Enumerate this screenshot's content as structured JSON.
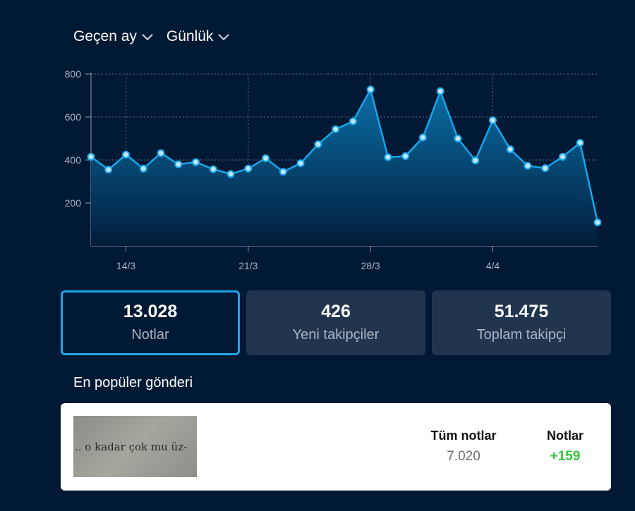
{
  "filters": {
    "period_label": "Geçen ay",
    "granularity_label": "Günlük"
  },
  "chart_data": {
    "type": "area",
    "y_ticks": [
      200,
      400,
      600,
      800
    ],
    "x_ticks": [
      "14/3",
      "21/3",
      "28/3",
      "4/4"
    ],
    "ylim": [
      0,
      800
    ],
    "grid": true,
    "values": [
      415,
      355,
      425,
      360,
      432,
      380,
      390,
      357,
      335,
      360,
      408,
      345,
      385,
      473,
      543,
      580,
      728,
      413,
      418,
      505,
      720,
      500,
      398,
      585,
      450,
      373,
      362,
      415,
      480,
      110
    ],
    "colors": {
      "line": "#15a7ec",
      "fill_top": "#0a6ea6",
      "fill_bottom": "#021d3b"
    }
  },
  "stats": [
    {
      "value": "13.028",
      "label": "Notlar"
    },
    {
      "value": "426",
      "label": "Yeni takipçiler"
    },
    {
      "value": "51.475",
      "label": "Toplam takipçi"
    }
  ],
  "popular": {
    "title": "En popüler gönderi",
    "thumbnail_text": ".. o kadar çok mu üz-",
    "total_notes_label": "Tüm notlar",
    "total_notes_value": "7.020",
    "notes_label": "Notlar",
    "notes_value": "+159"
  }
}
